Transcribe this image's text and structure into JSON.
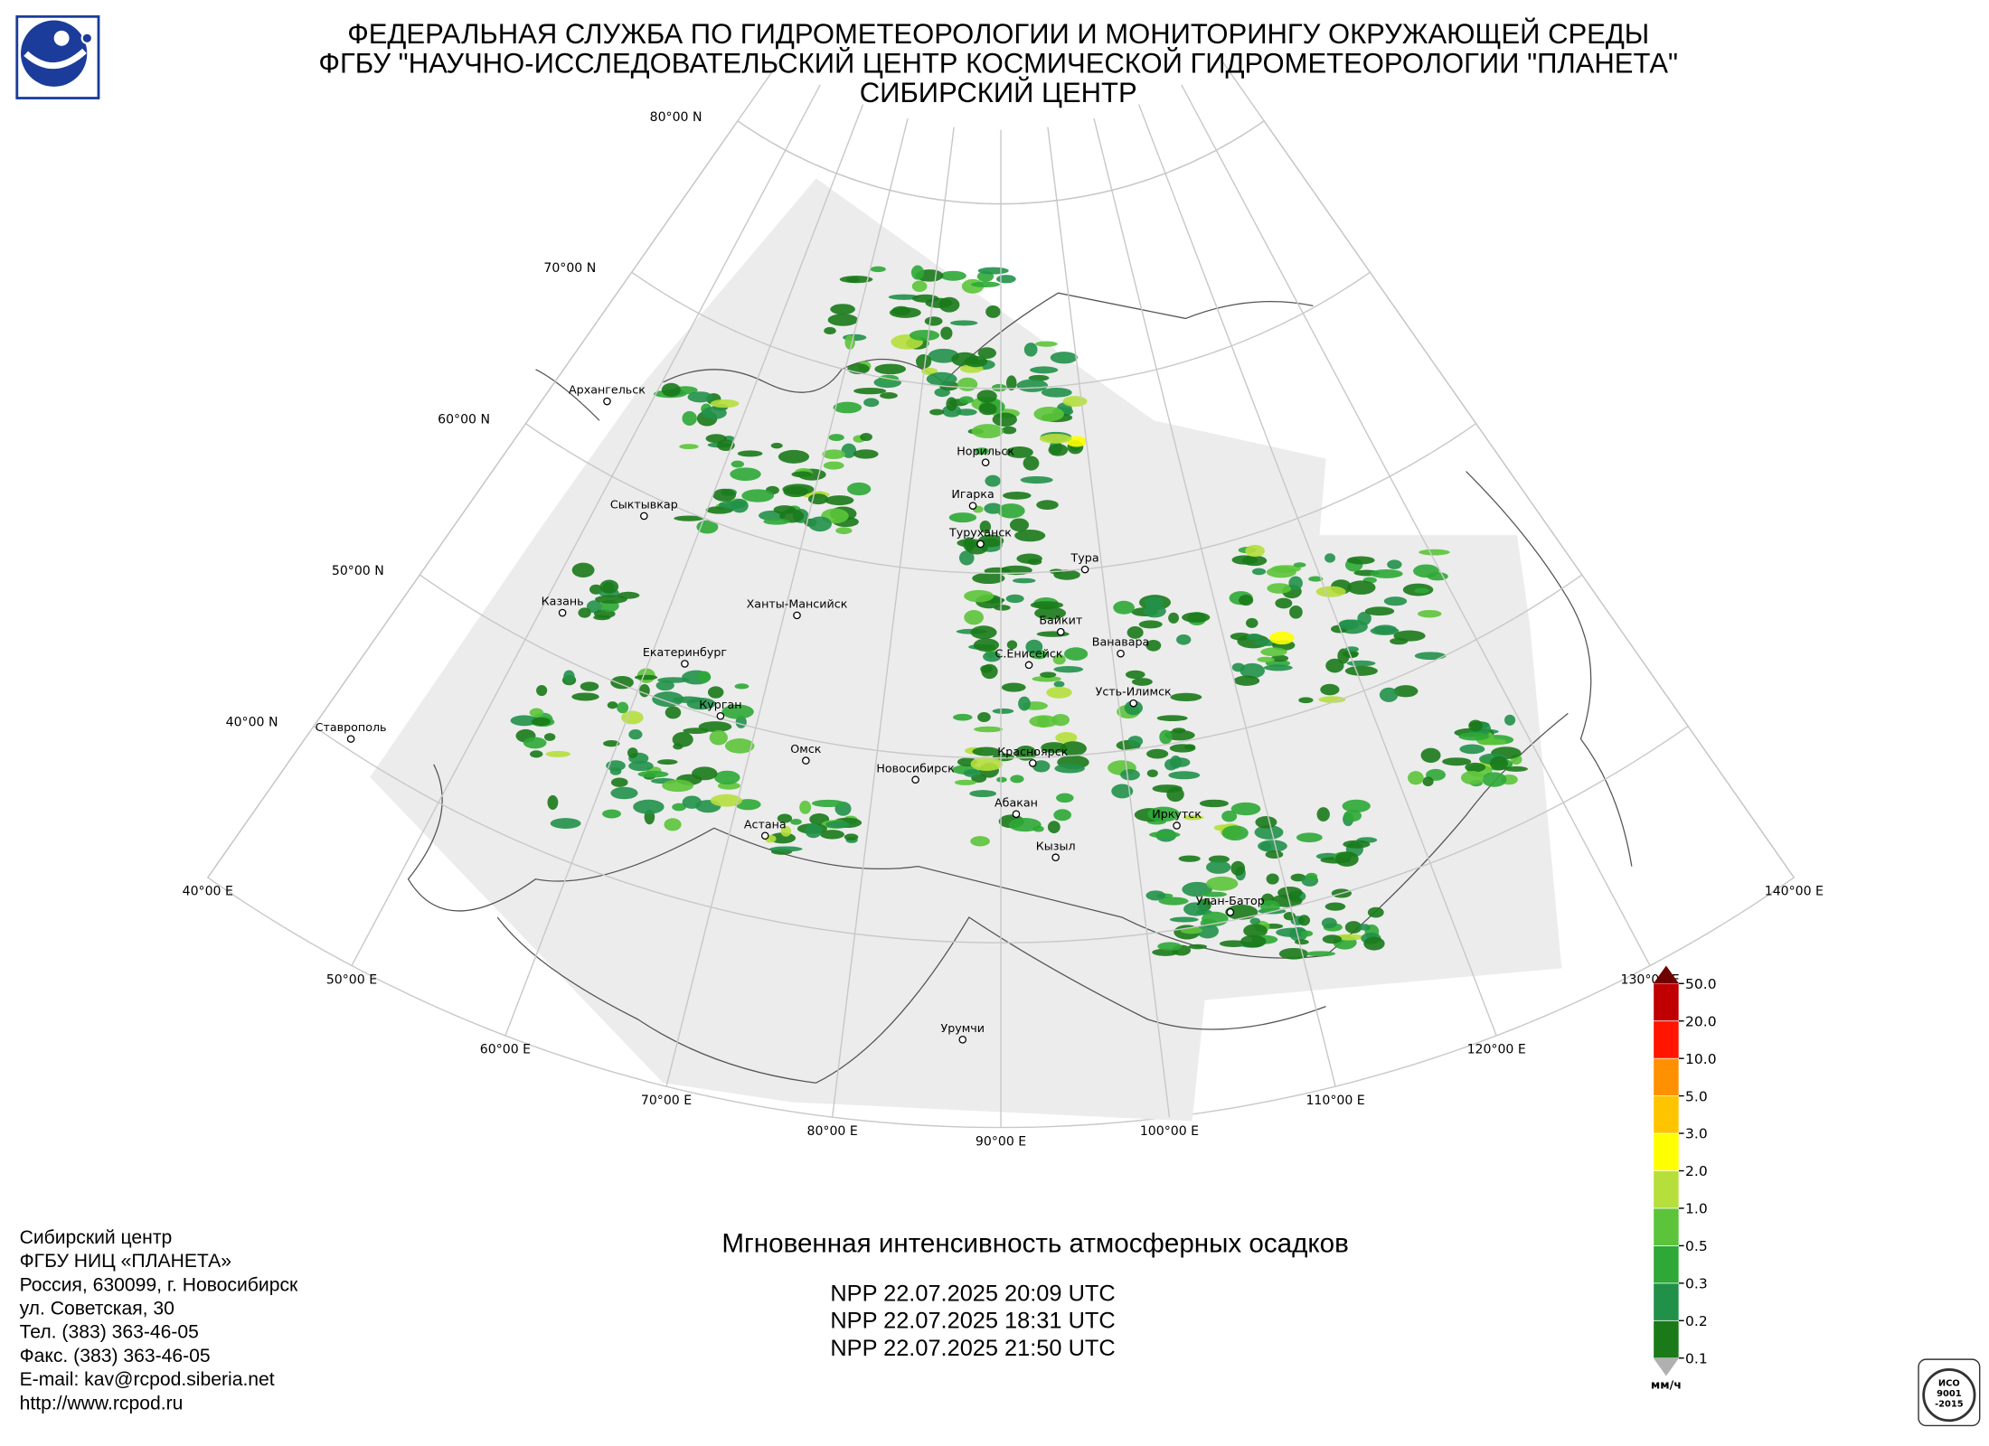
{
  "header": {
    "lines": [
      "ФЕДЕРАЛЬНАЯ СЛУЖБА ПО ГИДРОМЕТЕОРОЛОГИИ И МОНИТОРИНГУ ОКРУЖАЮЩЕЙ СРЕДЫ",
      "ФГБУ \"НАУЧНО-ИССЛЕДОВАТЕЛЬСКИЙ ЦЕНТР КОСМИЧЕСКОЙ ГИДРОМЕТЕОРОЛОГИИ \"ПЛАНЕТА\"",
      "СИБИРСКИЙ ЦЕНТР"
    ]
  },
  "map": {
    "latitudes": [
      {
        "value": 40,
        "label": "40°00 N"
      },
      {
        "value": 50,
        "label": "50°00 N"
      },
      {
        "value": 60,
        "label": "60°00 N"
      },
      {
        "value": 70,
        "label": "70°00 N"
      },
      {
        "value": 80,
        "label": "80°00 N"
      }
    ],
    "longitudes": [
      {
        "value": 40,
        "label": "40°00 E"
      },
      {
        "value": 50,
        "label": "50°00 E"
      },
      {
        "value": 60,
        "label": "60°00 E"
      },
      {
        "value": 70,
        "label": "70°00 E"
      },
      {
        "value": 80,
        "label": "80°00 E"
      },
      {
        "value": 90,
        "label": "90°00 E"
      },
      {
        "value": 100,
        "label": "100°00 E"
      },
      {
        "value": 110,
        "label": "110°00 E"
      },
      {
        "value": 120,
        "label": "120°00 E"
      },
      {
        "value": 130,
        "label": "130°00 E"
      },
      {
        "value": 140,
        "label": "140°00 E"
      }
    ],
    "cities": [
      "Архангельск",
      "Сыктывкар",
      "Казань",
      "Екатеринбург",
      "Курган",
      "Ставрополь",
      "Ханты-Мансийск",
      "Омск",
      "Астана",
      "Новосибирск",
      "Норильск",
      "Игарка",
      "Туруханск",
      "Тура",
      "Байкит",
      "Ванавара",
      "С.Енисейск",
      "Усть-Илимск",
      "Красноярск",
      "Абакан",
      "Кызыл",
      "Иркутск",
      "Улан-Батор",
      "Урумчи"
    ]
  },
  "product_title": "Мгновенная интенсивность атмосферных осадков",
  "passes": [
    "NPP 22.07.2025  20:09 UTC",
    "NPP 22.07.2025  18:31 UTC",
    "NPP 22.07.2025  21:50 UTC"
  ],
  "legend": {
    "ticks": [
      0.1,
      0.2,
      0.3,
      0.5,
      {
        "value": 1,
        "label": "1.0"
      },
      {
        "value": 2,
        "label": "2.0"
      },
      {
        "value": 3,
        "label": "3.0"
      },
      {
        "value": 5,
        "label": "5.0"
      },
      {
        "value": 10,
        "label": "10.0"
      },
      {
        "value": 20,
        "label": "20.0"
      },
      {
        "value": 50,
        "label": "50.0"
      }
    ],
    "colors": [
      "#1a7a1a",
      "#21914a",
      "#2ea836",
      "#5cc43a",
      "#b6df3c",
      "#ffff00",
      "#ffc400",
      "#ff9000",
      "#ff1500",
      "#c00000"
    ],
    "over_color": "#6e0000",
    "under_color": "#b0b0b0",
    "unit": "мм/ч"
  },
  "contacts": [
    "Сибирский центр",
    "ФГБУ НИЦ «ПЛАНЕТА»",
    "Россия, 630099, г. Новосибирск",
    "ул. Советская, 30",
    "Тел. (383) 363-46-05",
    "Факс. (383) 363-46-05",
    "E-mail: kav@rcpod.siberia.net",
    "http://www.rcpod.ru"
  ],
  "certificate": [
    "ИСО",
    "9001",
    "-2015"
  ]
}
